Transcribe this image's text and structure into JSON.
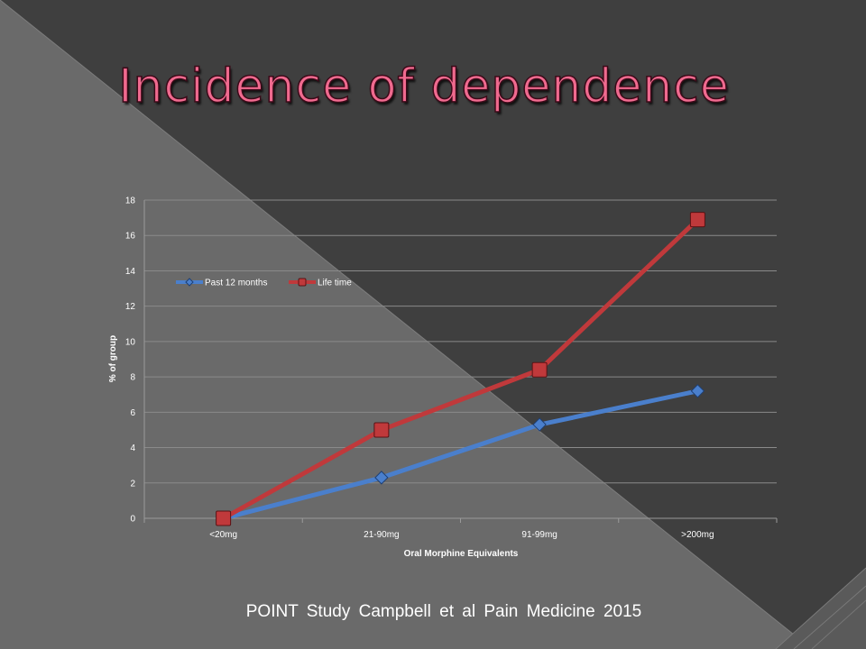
{
  "slide": {
    "title": "Incidence of dependence",
    "citation": "POINT Study   Campbell  et al  Pain Medicine 2015"
  },
  "colors": {
    "background_dark": "#3f3f3f",
    "background_light": "#6a6a6a",
    "title": "#f06a8f",
    "series_past_12_months": "#4a7fcc",
    "series_life_time": "#c0393b"
  },
  "chart_data": {
    "type": "line",
    "title": "",
    "xlabel": "Oral Morphine Equivalents",
    "ylabel": "% of group",
    "categories": [
      "<20mg",
      "21-90mg",
      "91-99mg",
      ">200mg"
    ],
    "ylim": [
      0,
      18
    ],
    "yticks": [
      "0",
      "2",
      "4",
      "6",
      "8",
      "10",
      "12",
      "14",
      "16",
      "18"
    ],
    "grid": true,
    "legend_position": "top-left",
    "series": [
      {
        "name": "Past 12 months",
        "values": [
          0,
          2.3,
          5.3,
          7.2
        ],
        "marker": "diamond",
        "color": "#4a7fcc"
      },
      {
        "name": "Life time",
        "values": [
          0,
          5.0,
          8.4,
          16.9
        ],
        "marker": "square",
        "color": "#c0393b"
      }
    ]
  }
}
